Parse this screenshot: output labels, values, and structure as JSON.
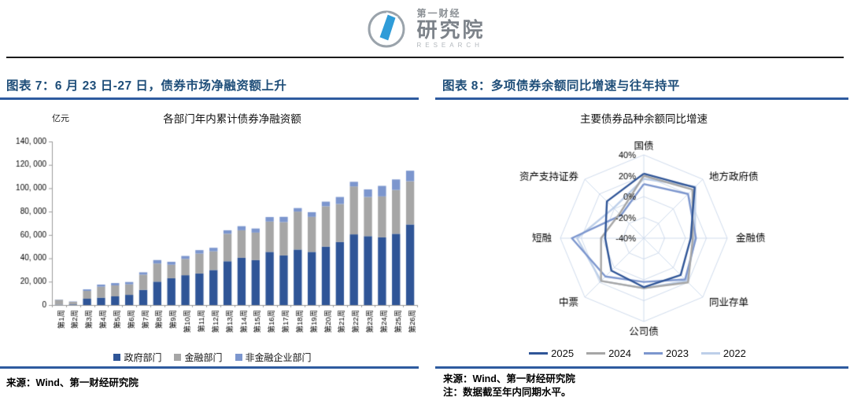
{
  "header": {
    "logo": {
      "brand_top": "第一财经",
      "brand_main": "研究院",
      "brand_sub": "RESEARCH",
      "blue": "#2f9cd8",
      "ring_gray": "#9aa3ab"
    }
  },
  "colors": {
    "title_blue": "#1F4E79",
    "rule_blue": "#2E5B9F",
    "axis_gray": "#9b9b9b",
    "radar_grid": "#c9d7ea",
    "text": "#000000"
  },
  "figures": [
    {
      "title": "图表 7：6 月 23 日-27 日，债券市场净融资额上升",
      "chart_title": "各部门年内累计债券净融资额",
      "unit_label": "亿元",
      "source": "来源：Wind、第一财经研究院",
      "chart_data": {
        "type": "bar",
        "stacked": true,
        "title": "各部门年内累计债券净融资额",
        "ylabel": "亿元",
        "ylim": [
          0,
          140000
        ],
        "ytick_values": [
          0,
          20000,
          40000,
          60000,
          80000,
          100000,
          120000,
          140000
        ],
        "ytick_labels": [
          "0",
          "20, 000",
          "40, 000",
          "60, 000",
          "80, 000",
          "100, 000",
          "120, 000",
          "140, 000"
        ],
        "categories": [
          "第1周",
          "第2周",
          "第3周",
          "第4周",
          "第5周",
          "第6周",
          "第7周",
          "第8周",
          "第9周",
          "第10周",
          "第11周",
          "第12周",
          "第13周",
          "第14周",
          "第15周",
          "第16周",
          "第17周",
          "第18周",
          "第19周",
          "第20周",
          "第21周",
          "第22周",
          "第23周",
          "第24周",
          "第25周",
          "第26周"
        ],
        "series": [
          {
            "name": "政府部门",
            "color": "#2F5597",
            "values": [
              300,
              500,
              5400,
              6300,
              7400,
              8700,
              13000,
              20000,
              23000,
              25500,
              27000,
              30000,
              37500,
              40500,
              38500,
              45500,
              42500,
              47500,
              45500,
              50000,
              54000,
              60500,
              59000,
              58000,
              61000,
              69000
            ]
          },
          {
            "name": "金融部门",
            "color": "#A6A6A6",
            "values": [
              4200,
              2200,
              6700,
              9400,
              9400,
              9000,
              13000,
              15500,
              11500,
              14000,
              17000,
              16000,
              23500,
              23500,
              23500,
              26000,
              28500,
              32500,
              30000,
              34500,
              32500,
              41000,
              33500,
              35000,
              37500,
              37000
            ]
          },
          {
            "name": "非金融企业部门",
            "color": "#7C96CE",
            "values": [
              200,
              300,
              1300,
              1800,
              2000,
              2000,
              2000,
              3000,
              2500,
              2500,
              3000,
              3000,
              3000,
              3500,
              3500,
              3800,
              4500,
              3000,
              4000,
              4000,
              6000,
              4000,
              6500,
              9000,
              9000,
              9000
            ]
          }
        ],
        "legend_position": "bottom"
      }
    },
    {
      "title": "图表 8：多项债券余额同比增速与往年持平",
      "chart_title": "主要债券品种余额同比增速",
      "source": "来源：Wind、第一财经研究院",
      "note": "注：数据截至年内同期水平。",
      "chart_data": {
        "type": "radar",
        "title": "主要债券品种余额同比增速",
        "axis_min": -40,
        "axis_max": 40,
        "axis_unit": 20,
        "tick_values": [
          40,
          20,
          0,
          -20,
          -40
        ],
        "tick_labels": [
          "40%",
          "20%",
          "0%",
          "-20%",
          "-40%"
        ],
        "categories": [
          "国债",
          "地方政府债",
          "金融债",
          "同业存单",
          "公司债",
          "中票",
          "短融",
          "资产支持证券"
        ],
        "series": [
          {
            "name": "2022",
            "color": "#BDCFE9",
            "values": [
              17,
              30,
              9,
              18,
              8,
              18,
              24,
              1
            ]
          },
          {
            "name": "2023",
            "color": "#7C96CE",
            "values": [
              12,
              20,
              10,
              16,
              2,
              12,
              29,
              -9
            ]
          },
          {
            "name": "2024",
            "color": "#A6A6A6",
            "values": [
              20,
              26,
              7,
              20,
              8,
              18,
              1,
              -7
            ]
          },
          {
            "name": "2025",
            "color": "#2F5597",
            "values": [
              22,
              29,
              5,
              10,
              7,
              4,
              -3,
              10
            ]
          }
        ],
        "legend_order": [
          "2025",
          "2024",
          "2023",
          "2022"
        ],
        "legend_position": "bottom"
      }
    }
  ]
}
